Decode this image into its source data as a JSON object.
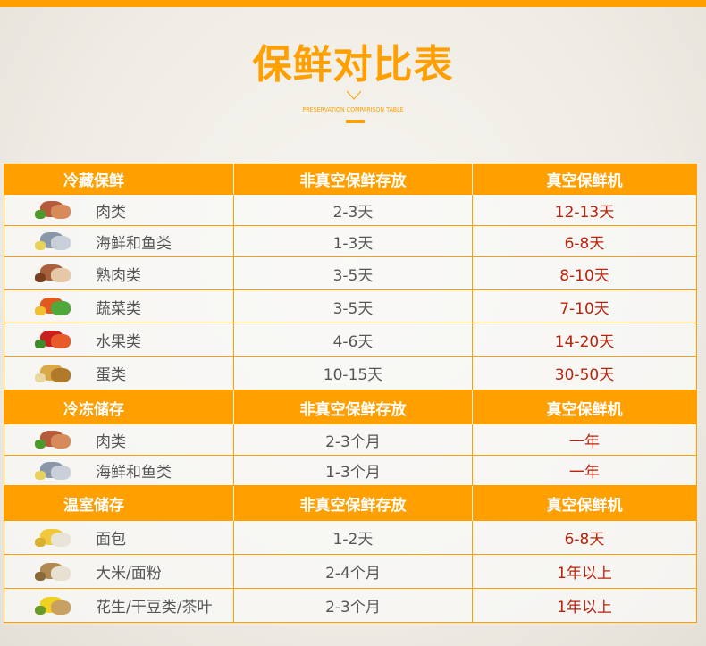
{
  "title": "保鲜对比表",
  "subtitle": "PRESERVATION COMPARISON TABLE",
  "colors": {
    "accent": "#ffa000",
    "vacuum_value": "#b8230e",
    "normal_value": "#555555"
  },
  "sections": [
    {
      "header": [
        "冷藏保鲜",
        "非真空保鲜存放",
        "真空保鲜机"
      ],
      "rows": [
        {
          "icon": "meat-icon",
          "food": "肉类",
          "normal": "2-3天",
          "vacuum": "12-13天"
        },
        {
          "icon": "fish-icon",
          "food": "海鲜和鱼类",
          "normal": "1-3天",
          "vacuum": "6-8天"
        },
        {
          "icon": "cooked-meat-icon",
          "food": "熟肉类",
          "normal": "3-5天",
          "vacuum": "8-10天"
        },
        {
          "icon": "vegetables-icon",
          "food": "蔬菜类",
          "normal": "3-5天",
          "vacuum": "7-10天"
        },
        {
          "icon": "fruit-icon",
          "food": "水果类",
          "normal": "4-6天",
          "vacuum": "14-20天"
        },
        {
          "icon": "eggs-icon",
          "food": "蛋类",
          "normal": "10-15天",
          "vacuum": "30-50天"
        }
      ]
    },
    {
      "header": [
        "冷冻储存",
        "非真空保鲜存放",
        "真空保鲜机"
      ],
      "rows": [
        {
          "icon": "meat-icon",
          "food": "肉类",
          "normal": "2-3个月",
          "vacuum": "一年"
        },
        {
          "icon": "fish-icon",
          "food": "海鲜和鱼类",
          "normal": "1-3个月",
          "vacuum": "一年"
        }
      ]
    },
    {
      "header": [
        "温室储存",
        "非真空保鲜存放",
        "真空保鲜机"
      ],
      "rows": [
        {
          "icon": "bread-icon",
          "food": "面包",
          "normal": "1-2天",
          "vacuum": "6-8天"
        },
        {
          "icon": "rice-flour-icon",
          "food": "大米/面粉",
          "normal": "2-4个月",
          "vacuum": "1年以上"
        },
        {
          "icon": "peanuts-tea-icon",
          "food": "花生/干豆类/茶叶",
          "normal": "2-3个月",
          "vacuum": "1年以上"
        }
      ]
    }
  ]
}
